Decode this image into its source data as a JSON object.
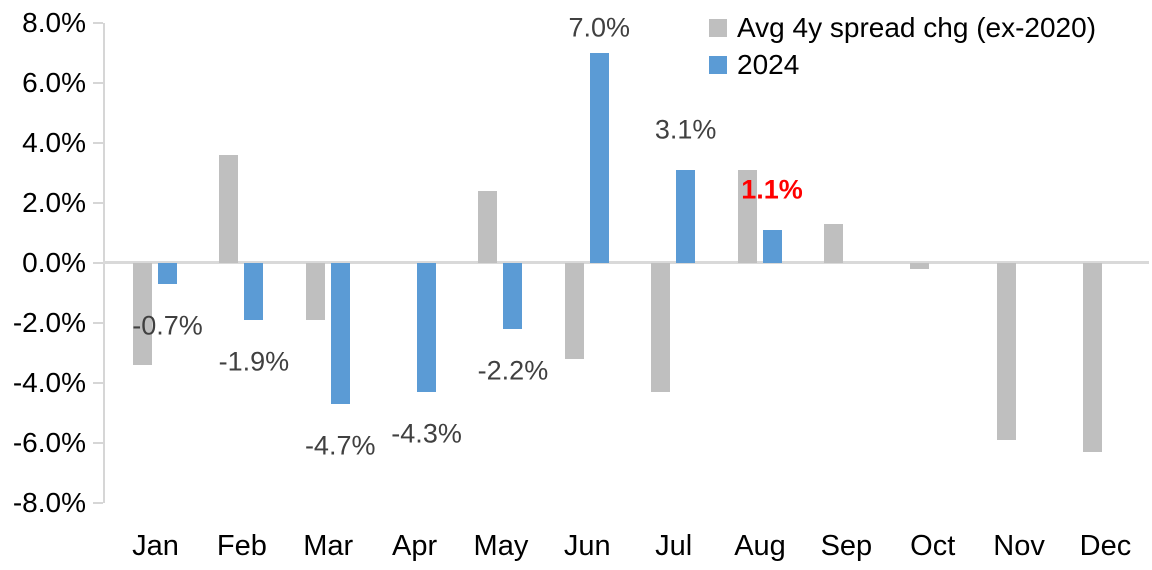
{
  "chart_data": {
    "type": "bar",
    "title": "",
    "xlabel": "",
    "ylabel": "",
    "categories": [
      "Jan",
      "Feb",
      "Mar",
      "Apr",
      "May",
      "Jun",
      "Jul",
      "Aug",
      "Sep",
      "Oct",
      "Nov",
      "Dec"
    ],
    "series": [
      {
        "name": "Avg 4y spread chg (ex-2020)",
        "color": "#bfbfbf",
        "values": [
          -3.4,
          3.6,
          -1.9,
          0.0,
          2.4,
          -3.2,
          -4.3,
          3.1,
          1.3,
          -0.2,
          -5.9,
          -6.3
        ]
      },
      {
        "name": "2024",
        "color": "#5b9bd5",
        "values": [
          -0.7,
          -1.9,
          -4.7,
          -4.3,
          -2.2,
          7.0,
          3.1,
          1.1,
          null,
          null,
          null,
          null
        ],
        "data_labels": [
          "-0.7%",
          "-1.9%",
          "-4.7%",
          "-4.3%",
          "-2.2%",
          "7.0%",
          "3.1%",
          "1.1%",
          null,
          null,
          null,
          null
        ],
        "label_styles": [
          null,
          null,
          null,
          null,
          null,
          null,
          null,
          "highlight",
          null,
          null,
          null,
          null
        ]
      }
    ],
    "ylim": [
      -8,
      8
    ],
    "ytick_step": 2,
    "ytick_labels": [
      "8.0%",
      "6.0%",
      "4.0%",
      "2.0%",
      "0.0%",
      "-2.0%",
      "-4.0%",
      "-6.0%",
      "-8.0%"
    ],
    "grid": false,
    "legend_position": "top-right",
    "colors": {
      "bar_gray": "#bfbfbf",
      "bar_blue": "#5b9bd5",
      "axis_line": "#d9d9d9",
      "data_label": "#404040",
      "highlight_label": "#ff0000",
      "axis_text": "#000000"
    }
  }
}
